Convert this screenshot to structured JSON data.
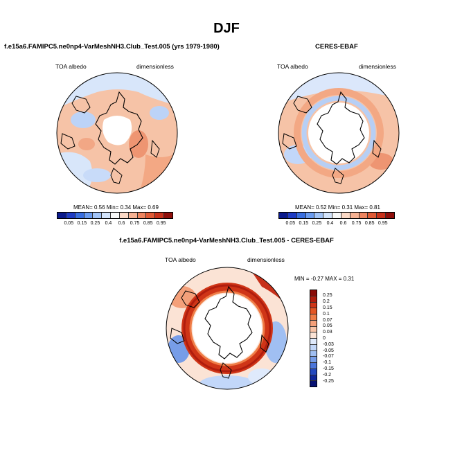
{
  "figure": {
    "title": "DJF"
  },
  "panels": {
    "model": {
      "title": "f.e15a6.FAMIPC5.ne0np4-VarMeshNH3.Club_Test.005 (yrs 1979-1980)",
      "variable": "TOA albedo",
      "units": "dimensionless",
      "stats": "MEAN=  0.56  Min=  0.34  Max=  0.69"
    },
    "obs": {
      "title": "CERES-EBAF",
      "variable": "TOA albedo",
      "units": "dimensionless",
      "stats": "MEAN=  0.52  Min=  0.31  Max=  0.81"
    },
    "diff": {
      "title": "f.e15a6.FAMIPC5.ne0np4-VarMeshNH3.Club_Test.005 - CERES-EBAF",
      "variable": "TOA albedo",
      "units": "dimensionless",
      "stats": "MIN =  -0.27 MAX =   0.31"
    }
  },
  "colorbars": {
    "abs": {
      "ticks": [
        "0.05",
        "0.15",
        "0.25",
        "0.4",
        "0.6",
        "0.75",
        "0.85",
        "0.95"
      ],
      "colors": [
        "#0a1a8c",
        "#1f3cc4",
        "#3a6fe0",
        "#6b9cf0",
        "#a2c4f7",
        "#d3e4fb",
        "#f8f8f8",
        "#fbd9c6",
        "#f6b293",
        "#ee8560",
        "#df5a36",
        "#c7311b",
        "#8f0e0a"
      ]
    },
    "diff": {
      "ticks": [
        "0.25",
        "0.2",
        "0.15",
        "0.1",
        "0.07",
        "0.05",
        "0.03",
        "0",
        "-0.03",
        "-0.05",
        "-0.07",
        "-0.1",
        "-0.15",
        "-0.2",
        "-0.25"
      ],
      "colors": [
        "#8a0c08",
        "#b01d0e",
        "#cf3517",
        "#e35624",
        "#ef7c46",
        "#f4a07a",
        "#f8c4a8",
        "#fbe3d5",
        "#dfeafc",
        "#c2d7f9",
        "#a0bff2",
        "#779de8",
        "#4c76da",
        "#2449bf",
        "#10279a",
        "#081273"
      ]
    }
  }
}
